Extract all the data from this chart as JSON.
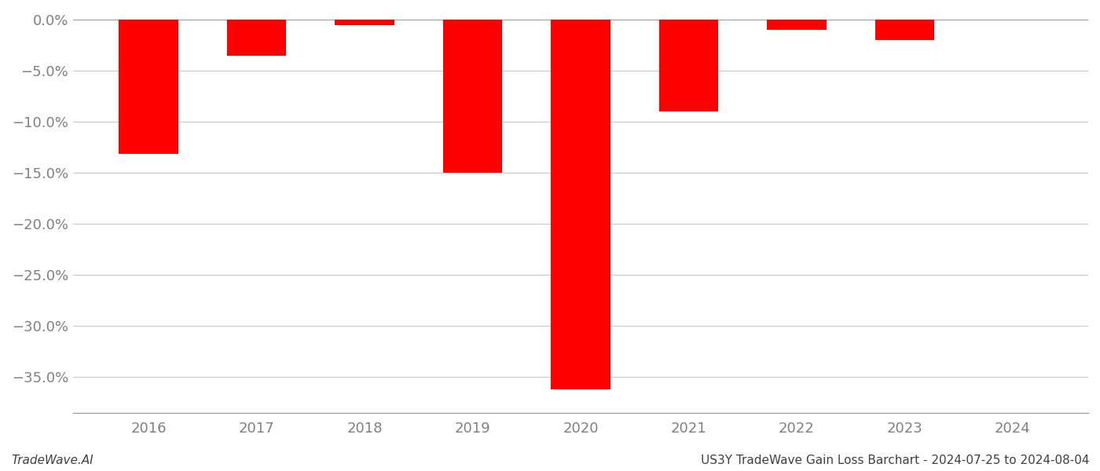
{
  "years": [
    2016,
    2017,
    2018,
    2019,
    2020,
    2021,
    2022,
    2023,
    2024
  ],
  "values": [
    -0.131,
    -0.035,
    -0.005,
    -0.15,
    -0.362,
    -0.09,
    -0.01,
    -0.02,
    0.0
  ],
  "bar_color": "#ff0000",
  "background_color": "#ffffff",
  "grid_color": "#c8c8c8",
  "ylabel_color": "#808080",
  "xlabel_color": "#808080",
  "ylim_min": -0.385,
  "ylim_max": 0.008,
  "yticks": [
    0.0,
    -0.05,
    -0.1,
    -0.15,
    -0.2,
    -0.25,
    -0.3,
    -0.35
  ],
  "ytick_labels": [
    "0.0%",
    "−5.0%",
    "−10.0%",
    "−15.0%",
    "−20.0%",
    "−25.0%",
    "−30.0%",
    "−35.0%"
  ],
  "footer_left": "TradeWave.AI",
  "footer_right": "US3Y TradeWave Gain Loss Barchart - 2024-07-25 to 2024-08-04",
  "footer_fontsize": 11,
  "tick_fontsize": 13,
  "bar_width": 0.55
}
